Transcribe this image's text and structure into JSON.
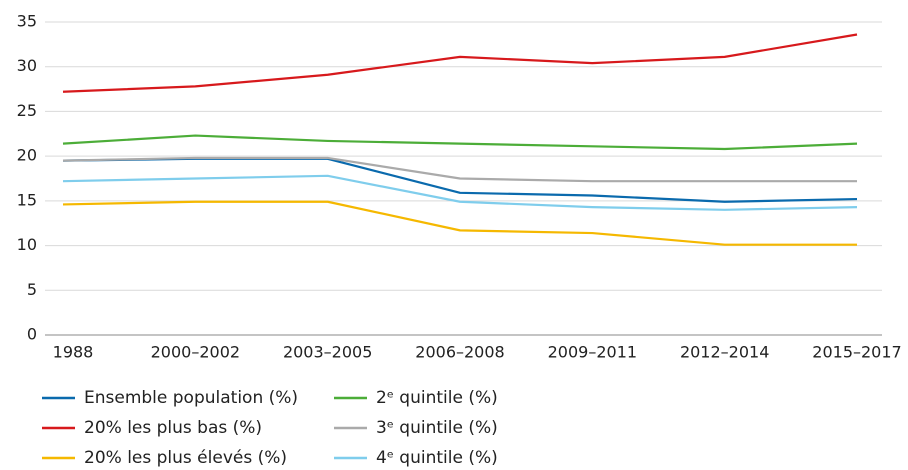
{
  "chart_data": {
    "type": "line",
    "categories": [
      "1988",
      "2000–2002",
      "2003–2005",
      "2006–2008",
      "2009–2011",
      "2012–2014",
      "2015–2017"
    ],
    "series": [
      {
        "name": "Ensemble population (%)",
        "color": "#0a6aad",
        "values": [
          19.5,
          19.7,
          19.7,
          15.9,
          15.6,
          14.9,
          15.2
        ]
      },
      {
        "name": "20% les plus bas (%)",
        "color": "#d7191c",
        "values": [
          27.2,
          27.8,
          29.1,
          31.1,
          30.4,
          31.1,
          33.6
        ]
      },
      {
        "name": "20% les plus élevés (%)",
        "color": "#f5b800",
        "values": [
          14.6,
          14.9,
          14.9,
          11.7,
          11.4,
          10.1,
          10.1
        ]
      },
      {
        "name": "2ᵉ quintile (%)",
        "color": "#4cad38",
        "values": [
          21.4,
          22.3,
          21.7,
          21.4,
          21.1,
          20.8,
          21.4
        ]
      },
      {
        "name": "3ᵉ quintile (%)",
        "color": "#aaaaaa",
        "values": [
          19.5,
          19.8,
          19.8,
          17.5,
          17.2,
          17.2,
          17.2
        ]
      },
      {
        "name": "4ᵉ quintile (%)",
        "color": "#7fcdec",
        "values": [
          17.2,
          17.5,
          17.8,
          14.9,
          14.3,
          14.0,
          14.3
        ]
      }
    ],
    "ylim": [
      0,
      35
    ],
    "yticks": [
      0,
      5,
      10,
      15,
      20,
      25,
      30,
      35
    ],
    "grid": true
  }
}
